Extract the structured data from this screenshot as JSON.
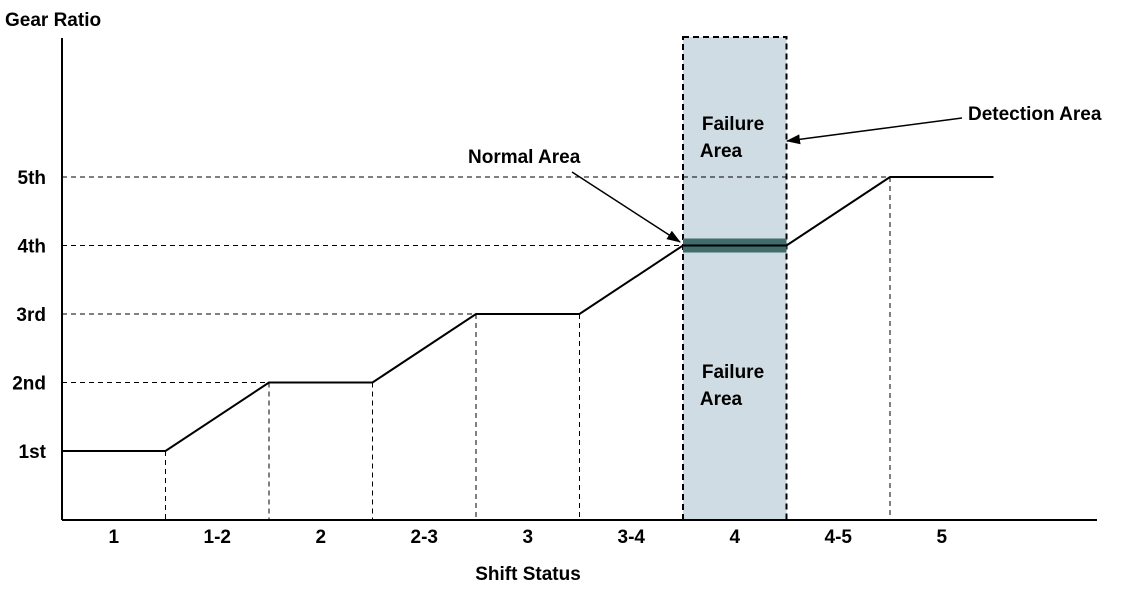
{
  "chart_data": {
    "type": "line",
    "ylabel": "Gear Ratio",
    "xlabel": "Shift Status",
    "y_ticks": [
      "1st",
      "2nd",
      "3rd",
      "4th",
      "5th"
    ],
    "x_ticks": [
      "1",
      "1-2",
      "2",
      "2-3",
      "3",
      "3-4",
      "4",
      "4-5",
      "5"
    ],
    "gear_ratio_profile": {
      "x": [
        0,
        1,
        2,
        3,
        4,
        5,
        6,
        7,
        8,
        9
      ],
      "y": [
        1,
        1,
        2,
        2,
        3,
        3,
        4,
        4,
        5,
        5
      ]
    },
    "detection_area": {
      "label": "Detection Area",
      "x_range": [
        6,
        7
      ]
    },
    "normal_area": {
      "label": "Normal Area",
      "gear": 4
    },
    "failure_area_upper": {
      "line1": "Failure",
      "line2": "Area"
    },
    "failure_area_lower": {
      "line1": "Failure",
      "line2": "Area"
    },
    "colors": {
      "detection_fill": "#cfdce3",
      "normal_band": "#406c6c",
      "line": "#000000"
    }
  }
}
